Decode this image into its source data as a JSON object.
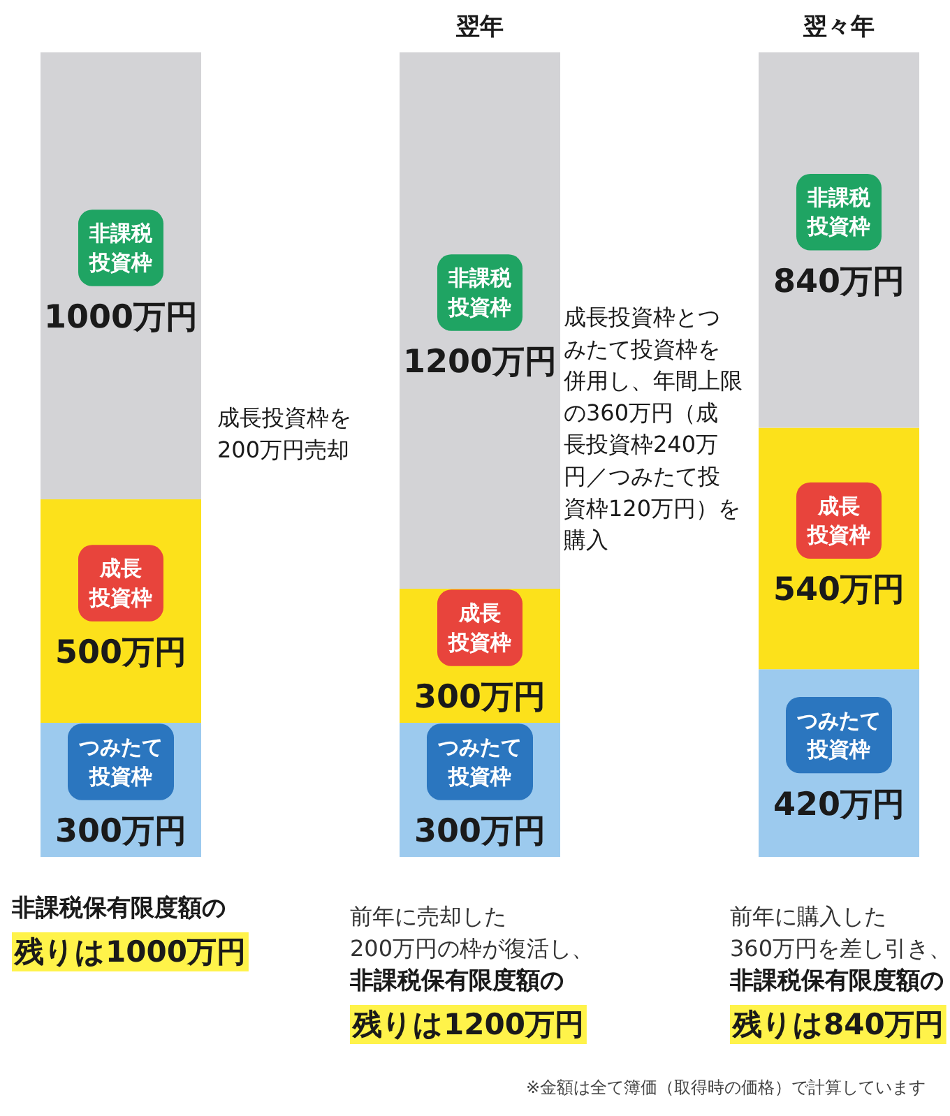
{
  "chart_data": {
    "type": "bar",
    "stacked": true,
    "tick_labels": "x",
    "categories": [
      null,
      "翌年",
      "翌々年"
    ],
    "series": [
      {
        "name": "つみたて投資枠",
        "color": "#9ccaee",
        "values": [
          300,
          300,
          420
        ],
        "value_labels": [
          "300万円",
          "300万円",
          "420万円"
        ]
      },
      {
        "name": "成長投資枠",
        "color": "#fce11b",
        "values": [
          500,
          300,
          540
        ],
        "value_labels": [
          "500万円",
          "300万円",
          "540万円"
        ]
      },
      {
        "name": "非課税投資枠",
        "color": "#d3d3d6",
        "values": [
          1000,
          1200,
          840
        ],
        "value_labels": [
          "1000万円",
          "1200万円",
          "840万円"
        ]
      }
    ],
    "annotations": [
      "成長投資枠を200万円売却",
      "成長投資枠とつみたて投資枠を併用し、年間上限の360万円（成長投資枠240万円／つみたて投資枠120万円）を購入",
      "非課税保有限度額の残りは1000万円",
      "前年に売却した200万円の枠が復活し、",
      "非課税保有限度額の残りは1200万円",
      "前年に購入した360万円を差し引き、",
      "非課税保有限度額の残りは840万円",
      "※金額は全て簿価（取得時の価格）で計算しています"
    ]
  }
}
